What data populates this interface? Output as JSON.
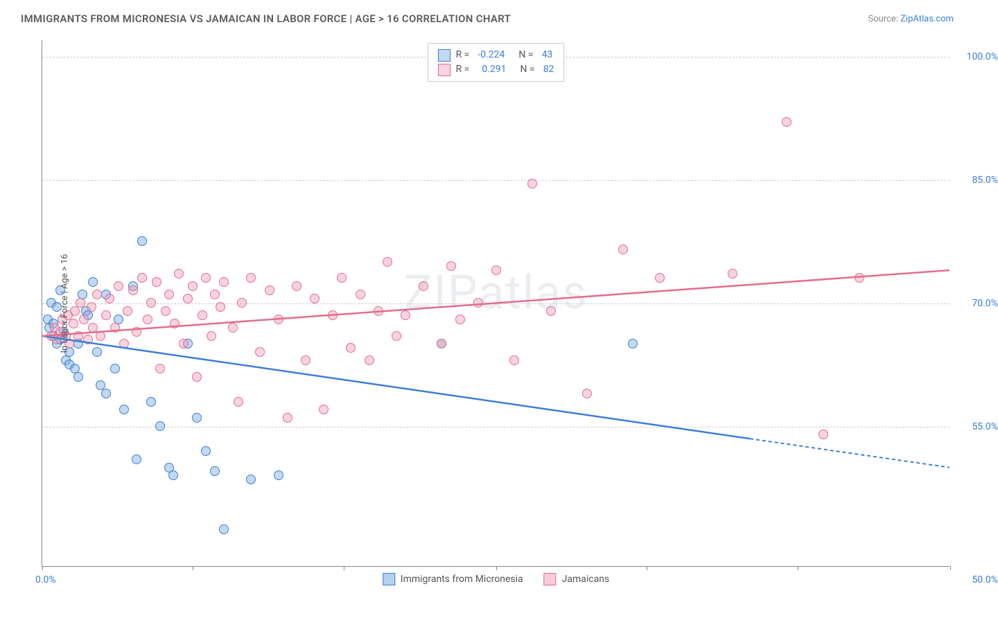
{
  "header": {
    "title": "IMMIGRANTS FROM MICRONESIA VS JAMAICAN IN LABOR FORCE | AGE > 16 CORRELATION CHART",
    "source_prefix": "Source: ",
    "source_link": "ZipAtlas.com"
  },
  "chart": {
    "type": "scatter",
    "watermark": "ZIPatlas",
    "y_axis_title": "In Labor Force | Age > 16",
    "xlim": [
      0,
      50
    ],
    "ylim": [
      38,
      102
    ],
    "x_tick_positions": [
      0,
      8.3,
      16.6,
      25,
      33.3,
      41.6,
      50
    ],
    "x_label_min": "0.0%",
    "x_label_max": "50.0%",
    "y_ticks": [
      55.0,
      70.0,
      85.0,
      100.0
    ],
    "y_tick_labels": [
      "55.0%",
      "70.0%",
      "85.0%",
      "100.0%"
    ],
    "gridline_color": "#cccccc",
    "background_color": "#ffffff",
    "axis_label_color": "#3b7dd8",
    "point_radius": 7,
    "series": [
      {
        "name": "Immigrants from Micronesia",
        "stroke": "#3b7dd8",
        "fill": "rgba(120,170,225,0.45)",
        "R": "-0.224",
        "N": "43",
        "trend": {
          "x1": 0,
          "y1": 66.0,
          "x2": 39,
          "y2": 53.5,
          "x2_ext": 50,
          "y2_ext": 50.0
        },
        "points": [
          [
            0.3,
            68
          ],
          [
            0.4,
            67
          ],
          [
            0.5,
            70
          ],
          [
            0.6,
            67.5
          ],
          [
            0.6,
            66
          ],
          [
            0.8,
            65
          ],
          [
            0.8,
            69.5
          ],
          [
            1.0,
            71.5
          ],
          [
            1.0,
            65.5
          ],
          [
            1.2,
            66.5
          ],
          [
            1.3,
            63
          ],
          [
            1.5,
            64
          ],
          [
            1.5,
            62.5
          ],
          [
            1.8,
            62
          ],
          [
            2.0,
            61
          ],
          [
            2.0,
            65
          ],
          [
            2.2,
            71
          ],
          [
            2.4,
            69
          ],
          [
            2.5,
            68.5
          ],
          [
            2.8,
            72.5
          ],
          [
            3.0,
            64
          ],
          [
            3.2,
            60
          ],
          [
            3.5,
            59
          ],
          [
            3.5,
            71
          ],
          [
            4.0,
            62
          ],
          [
            4.2,
            68
          ],
          [
            4.5,
            57
          ],
          [
            5.0,
            72
          ],
          [
            5.2,
            51
          ],
          [
            5.5,
            77.5
          ],
          [
            6.0,
            58
          ],
          [
            6.5,
            55
          ],
          [
            7.0,
            50
          ],
          [
            7.2,
            49
          ],
          [
            8.0,
            65
          ],
          [
            8.5,
            56
          ],
          [
            9.0,
            52
          ],
          [
            9.5,
            49.5
          ],
          [
            10.0,
            42.5
          ],
          [
            11.5,
            48.5
          ],
          [
            13,
            49
          ],
          [
            22,
            65
          ],
          [
            32.5,
            65
          ]
        ]
      },
      {
        "name": "Jamaicans",
        "stroke": "#e56b8c",
        "fill": "rgba(240,160,185,0.45)",
        "R": "0.291",
        "N": "82",
        "trend": {
          "x1": 0,
          "y1": 66.0,
          "x2": 50,
          "y2": 74.0
        },
        "points": [
          [
            0.5,
            66
          ],
          [
            0.7,
            67
          ],
          [
            0.8,
            65.5
          ],
          [
            1.0,
            66.5
          ],
          [
            1.1,
            68
          ],
          [
            1.3,
            66
          ],
          [
            1.4,
            68.5
          ],
          [
            1.5,
            65
          ],
          [
            1.7,
            67.5
          ],
          [
            1.8,
            69
          ],
          [
            2.0,
            66
          ],
          [
            2.1,
            70
          ],
          [
            2.3,
            68
          ],
          [
            2.5,
            65.5
          ],
          [
            2.7,
            69.5
          ],
          [
            2.8,
            67
          ],
          [
            3.0,
            71
          ],
          [
            3.2,
            66
          ],
          [
            3.5,
            68.5
          ],
          [
            3.7,
            70.5
          ],
          [
            4.0,
            67
          ],
          [
            4.2,
            72
          ],
          [
            4.5,
            65
          ],
          [
            4.7,
            69
          ],
          [
            5.0,
            71.5
          ],
          [
            5.2,
            66.5
          ],
          [
            5.5,
            73
          ],
          [
            5.8,
            68
          ],
          [
            6.0,
            70
          ],
          [
            6.3,
            72.5
          ],
          [
            6.5,
            62
          ],
          [
            6.8,
            69
          ],
          [
            7.0,
            71
          ],
          [
            7.3,
            67.5
          ],
          [
            7.5,
            73.5
          ],
          [
            7.8,
            65
          ],
          [
            8.0,
            70.5
          ],
          [
            8.3,
            72
          ],
          [
            8.5,
            61
          ],
          [
            8.8,
            68.5
          ],
          [
            9.0,
            73
          ],
          [
            9.3,
            66
          ],
          [
            9.5,
            71
          ],
          [
            9.8,
            69.5
          ],
          [
            10.0,
            72.5
          ],
          [
            10.5,
            67
          ],
          [
            10.8,
            58
          ],
          [
            11.0,
            70
          ],
          [
            11.5,
            73
          ],
          [
            12.0,
            64
          ],
          [
            12.5,
            71.5
          ],
          [
            13.0,
            68
          ],
          [
            13.5,
            56
          ],
          [
            14.0,
            72
          ],
          [
            14.5,
            63
          ],
          [
            15.0,
            70.5
          ],
          [
            15.5,
            57
          ],
          [
            16.0,
            68.5
          ],
          [
            16.5,
            73
          ],
          [
            17.0,
            64.5
          ],
          [
            17.5,
            71
          ],
          [
            18.0,
            63
          ],
          [
            18.5,
            69
          ],
          [
            19.0,
            75
          ],
          [
            19.5,
            66
          ],
          [
            20.0,
            68.5
          ],
          [
            21.0,
            72
          ],
          [
            22.0,
            65
          ],
          [
            22.5,
            74.5
          ],
          [
            23.0,
            68
          ],
          [
            24.0,
            70
          ],
          [
            25.0,
            74
          ],
          [
            26.0,
            63
          ],
          [
            27.0,
            84.5
          ],
          [
            28.0,
            69
          ],
          [
            30.0,
            59
          ],
          [
            32.0,
            76.5
          ],
          [
            34.0,
            73
          ],
          [
            38.0,
            73.5
          ],
          [
            41.0,
            92
          ],
          [
            43.0,
            54
          ],
          [
            45.0,
            73
          ]
        ]
      }
    ],
    "legend_bottom": [
      {
        "label": "Immigrants from Micronesia",
        "stroke": "#3b7dd8",
        "fill": "rgba(120,170,225,0.55)"
      },
      {
        "label": "Jamaicans",
        "stroke": "#e56b8c",
        "fill": "rgba(240,160,185,0.55)"
      }
    ]
  }
}
